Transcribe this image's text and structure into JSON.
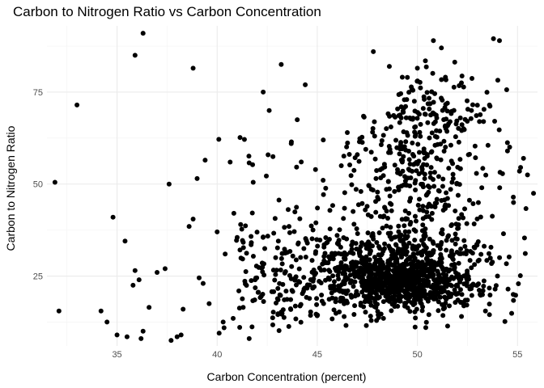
{
  "chart_data": {
    "type": "scatter",
    "title": "Carbon to Nitrogen Ratio vs Carbon Concentration",
    "xlabel": "Carbon Concentration (percent)",
    "ylabel": "Carbon to Nitrogen Ratio",
    "xlim": [
      31.5,
      56.0
    ],
    "ylim": [
      6.0,
      93.0
    ],
    "x_ticks": [
      35,
      40,
      45,
      50,
      55
    ],
    "x_tick_labels": [
      "35",
      "40",
      "45",
      "50",
      "55"
    ],
    "y_ticks": [
      25,
      50,
      75
    ],
    "y_tick_labels": [
      "25",
      "50",
      "75"
    ],
    "grid": true,
    "legend": "none",
    "point_color": "#000000",
    "points": [
      [
        31.9,
        50.5
      ],
      [
        32.1,
        15.5
      ],
      [
        33.0,
        71.5
      ],
      [
        34.2,
        15.5
      ],
      [
        34.5,
        12.5
      ],
      [
        34.8,
        41.0
      ],
      [
        35.0,
        9.0
      ],
      [
        35.4,
        34.5
      ],
      [
        35.5,
        8.5
      ],
      [
        35.8,
        22.5
      ],
      [
        35.9,
        85.0
      ],
      [
        35.9,
        26.5
      ],
      [
        36.1,
        24.0
      ],
      [
        36.2,
        8.0
      ],
      [
        36.3,
        10.0
      ],
      [
        36.3,
        91.0
      ],
      [
        36.6,
        16.5
      ],
      [
        37.0,
        26.0
      ],
      [
        37.4,
        27.0
      ],
      [
        37.6,
        50.0
      ],
      [
        37.7,
        7.5
      ],
      [
        38.0,
        8.5
      ],
      [
        38.2,
        9.0
      ],
      [
        38.3,
        16.0
      ],
      [
        38.6,
        38.5
      ],
      [
        38.8,
        40.5
      ],
      [
        38.8,
        81.5
      ],
      [
        39.0,
        51.5
      ],
      [
        39.1,
        24.5
      ],
      [
        39.3,
        23.0
      ],
      [
        39.4,
        56.5
      ],
      [
        39.6,
        17.5
      ],
      [
        40.0,
        37.0
      ],
      [
        40.1,
        9.5
      ],
      [
        40.3,
        12.5
      ],
      [
        40.4,
        31.0
      ],
      [
        40.8,
        13.5
      ],
      [
        41.0,
        35.5
      ],
      [
        41.3,
        16.5
      ],
      [
        41.6,
        8.0
      ],
      [
        41.8,
        50.5
      ],
      [
        42.3,
        75.0
      ],
      [
        42.6,
        70.0
      ],
      [
        43.2,
        82.5
      ],
      [
        43.7,
        61.0
      ],
      [
        44.0,
        67.5
      ],
      [
        44.2,
        56.0
      ],
      [
        44.4,
        77.0
      ],
      [
        45.3,
        62.0
      ],
      [
        46.2,
        55.0
      ],
      [
        46.5,
        64.0
      ],
      [
        47.0,
        58.0
      ],
      [
        47.8,
        86.0
      ],
      [
        48.6,
        82.0
      ],
      [
        49.5,
        79.0
      ],
      [
        50.0,
        81.5
      ],
      [
        50.4,
        83.5
      ],
      [
        50.8,
        89.0
      ],
      [
        51.2,
        87.0
      ],
      [
        51.5,
        72.0
      ],
      [
        52.2,
        77.5
      ],
      [
        52.7,
        70.0
      ],
      [
        53.1,
        67.0
      ],
      [
        53.6,
        71.5
      ],
      [
        53.8,
        89.5
      ],
      [
        54.1,
        89.0
      ],
      [
        54.0,
        25.0
      ],
      [
        54.3,
        36.5
      ],
      [
        54.5,
        59.0
      ],
      [
        54.8,
        45.0
      ],
      [
        55.1,
        53.5
      ],
      [
        55.3,
        57.0
      ],
      [
        55.5,
        52.5
      ],
      [
        55.8,
        47.5
      ],
      [
        53.6,
        14.5
      ],
      [
        53.4,
        15.5
      ]
    ],
    "cloud": {
      "count": 1700,
      "x_range": [
        40.0,
        55.5
      ],
      "y_range": [
        8.0,
        90.0
      ]
    }
  }
}
